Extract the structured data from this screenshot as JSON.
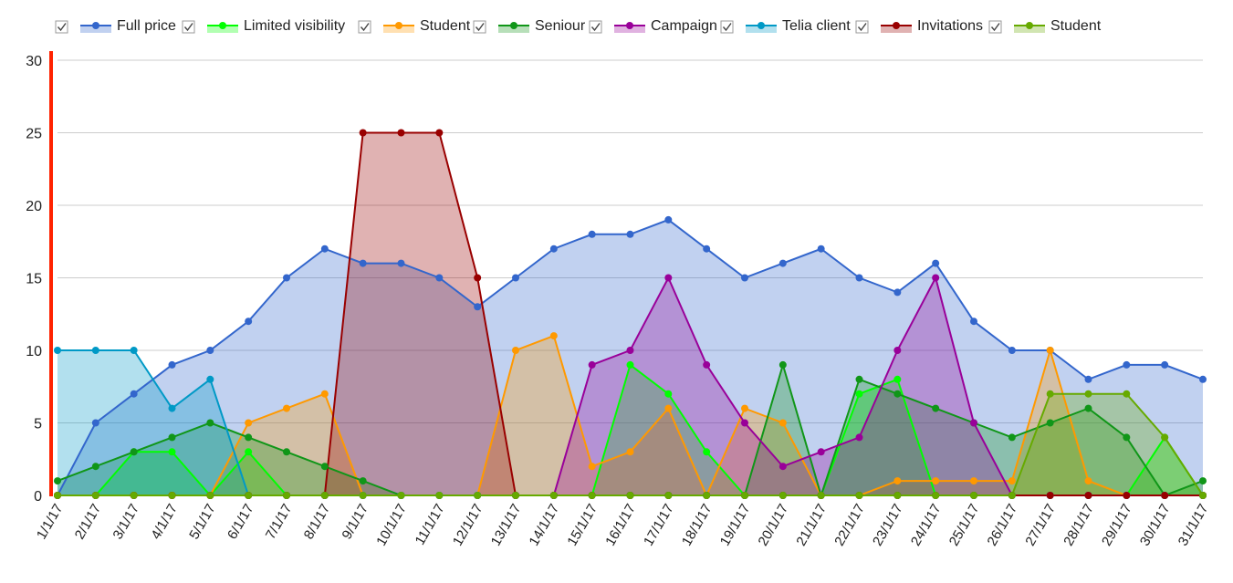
{
  "chart_data": {
    "type": "area",
    "x": [
      "1/1/17",
      "2/1/17",
      "3/1/17",
      "4/1/17",
      "5/1/17",
      "6/1/17",
      "7/1/17",
      "8/1/17",
      "9/1/17",
      "10/1/17",
      "11/1/17",
      "12/1/17",
      "13/1/17",
      "14/1/17",
      "15/1/17",
      "16/1/17",
      "17/1/17",
      "18/1/17",
      "19/1/17",
      "20/1/17",
      "21/1/17",
      "22/1/17",
      "23/1/17",
      "24/1/17",
      "25/1/17",
      "26/1/17",
      "27/1/17",
      "28/1/17",
      "29/1/17",
      "30/1/17",
      "31/1/17"
    ],
    "ylim": [
      0,
      30
    ],
    "yticks": [
      0,
      5,
      10,
      15,
      20,
      25,
      30
    ],
    "grid": true,
    "legend_position": "top",
    "series": [
      {
        "name": "Full price",
        "color": "#3366cc",
        "checked": true,
        "values": [
          0,
          5,
          7,
          9,
          10,
          12,
          15,
          17,
          16,
          16,
          15,
          13,
          15,
          17,
          18,
          18,
          19,
          17,
          15,
          16,
          17,
          15,
          14,
          16,
          12,
          10,
          10,
          8,
          9,
          9,
          8
        ]
      },
      {
        "name": "Limited visibility",
        "color": "#00ff00",
        "checked": true,
        "values": [
          0,
          0,
          3,
          3,
          0,
          3,
          0,
          0,
          0,
          0,
          0,
          0,
          0,
          0,
          0,
          9,
          7,
          3,
          0,
          0,
          0,
          7,
          8,
          0,
          0,
          0,
          0,
          0,
          0,
          4,
          0
        ]
      },
      {
        "name": "Student",
        "color": "#ff9900",
        "checked": true,
        "values": [
          0,
          0,
          0,
          0,
          0,
          5,
          6,
          7,
          0,
          0,
          0,
          0,
          10,
          11,
          2,
          3,
          6,
          0,
          6,
          5,
          0,
          0,
          1,
          1,
          1,
          1,
          10,
          1,
          0,
          0,
          0
        ]
      },
      {
        "name": "Seniour",
        "color": "#109618",
        "checked": true,
        "values": [
          1,
          2,
          3,
          4,
          5,
          4,
          3,
          2,
          1,
          0,
          0,
          0,
          0,
          0,
          0,
          0,
          0,
          0,
          0,
          9,
          0,
          8,
          7,
          6,
          5,
          4,
          5,
          6,
          4,
          0,
          1
        ]
      },
      {
        "name": "Campaign",
        "color": "#990099",
        "checked": true,
        "values": [
          0,
          0,
          0,
          0,
          0,
          0,
          0,
          0,
          0,
          0,
          0,
          0,
          0,
          0,
          9,
          10,
          15,
          9,
          5,
          2,
          3,
          4,
          10,
          15,
          5,
          0,
          0,
          0,
          0,
          0,
          0
        ]
      },
      {
        "name": "Telia client",
        "color": "#0099c6",
        "checked": true,
        "values": [
          10,
          10,
          10,
          6,
          8,
          0,
          0,
          0,
          0,
          0,
          0,
          0,
          0,
          0,
          0,
          0,
          0,
          0,
          0,
          0,
          0,
          0,
          0,
          0,
          0,
          0,
          0,
          0,
          0,
          0,
          0
        ]
      },
      {
        "name": "Invitations",
        "color": "#990000",
        "checked": true,
        "values": [
          0,
          0,
          0,
          0,
          0,
          0,
          0,
          0,
          25,
          25,
          25,
          15,
          0,
          0,
          0,
          0,
          0,
          0,
          0,
          0,
          0,
          0,
          0,
          0,
          0,
          0,
          0,
          0,
          0,
          0,
          0
        ]
      },
      {
        "name": "Student",
        "color": "#66aa00",
        "checked": true,
        "values": [
          0,
          0,
          0,
          0,
          0,
          0,
          0,
          0,
          0,
          0,
          0,
          0,
          0,
          0,
          0,
          0,
          0,
          0,
          0,
          0,
          0,
          0,
          0,
          0,
          0,
          0,
          7,
          7,
          7,
          4,
          0
        ]
      }
    ]
  }
}
